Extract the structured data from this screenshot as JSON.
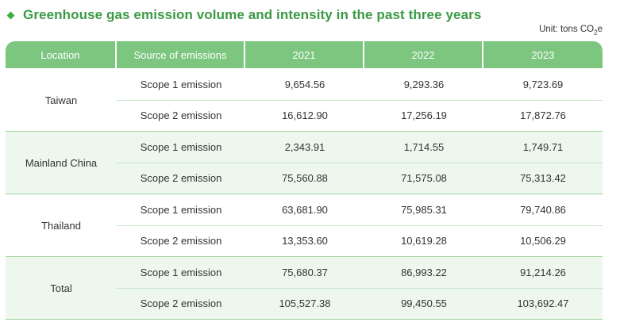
{
  "title": "Greenhouse gas emission volume and intensity in the past three years",
  "unit": {
    "prefix": "Unit: tons CO",
    "sub": "2",
    "suffix": "e"
  },
  "headers": [
    "Location",
    "Source of emissions",
    "2021",
    "2022",
    "2023"
  ],
  "groups": [
    {
      "location": "Taiwan",
      "rows": [
        {
          "source": "Scope 1 emission",
          "v2021": "9,654.56",
          "v2022": "9,293.36",
          "v2023": "9,723.69"
        },
        {
          "source": "Scope 2 emission",
          "v2021": "16,612.90",
          "v2022": "17,256.19",
          "v2023": "17,872.76"
        }
      ]
    },
    {
      "location": "Mainland China",
      "rows": [
        {
          "source": "Scope 1 emission",
          "v2021": "2,343.91",
          "v2022": "1,714.55",
          "v2023": "1,749.71"
        },
        {
          "source": "Scope 2 emission",
          "v2021": "75,560.88",
          "v2022": "71,575.08",
          "v2023": "75,313.42"
        }
      ]
    },
    {
      "location": "Thailand",
      "rows": [
        {
          "source": "Scope 1 emission",
          "v2021": "63,681.90",
          "v2022": "75,985.31",
          "v2023": "79,740.86"
        },
        {
          "source": "Scope 2 emission",
          "v2021": "13,353.60",
          "v2022": "10,619.28",
          "v2023": "10,506.29"
        }
      ]
    },
    {
      "location": "Total",
      "rows": [
        {
          "source": "Scope 1 emission",
          "v2021": "75,680.37",
          "v2022": "86,993.22",
          "v2023": "91,214.26"
        },
        {
          "source": "Scope 2 emission",
          "v2021": "105,527.38",
          "v2022": "99,450.55",
          "v2023": "103,692.47"
        }
      ]
    }
  ],
  "colors": {
    "accent": "#3a9a44",
    "header_bg": "#7cc67f",
    "shade": "#eef7ee"
  }
}
